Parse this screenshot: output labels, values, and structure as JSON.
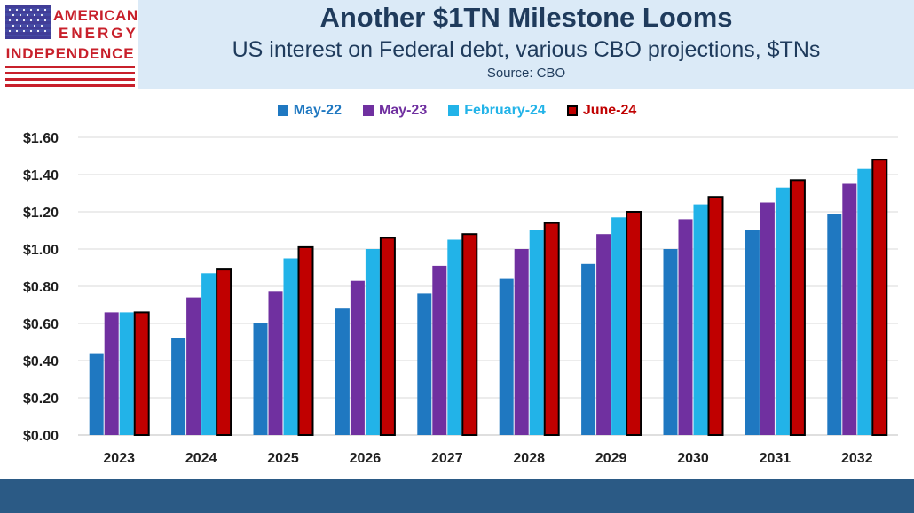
{
  "logo": {
    "line1": "AMERICAN",
    "line2": "ENERGY",
    "line3": "INDEPENDENCE",
    "flag_icon": "us-flag-icon"
  },
  "header": {
    "title": "Another $1TN Milestone Looms",
    "subtitle": "US interest on Federal debt, various CBO projections, $TNs",
    "source": "Source: CBO"
  },
  "colors": {
    "header_band": "#dbeaf7",
    "title_text": "#1f3b5c",
    "footer_band": "#2b5a85",
    "logo_red": "#c8202b"
  },
  "chart_data": {
    "type": "bar",
    "categories": [
      "2023",
      "2024",
      "2025",
      "2026",
      "2027",
      "2028",
      "2029",
      "2030",
      "2031",
      "2032"
    ],
    "series": [
      {
        "name": "May-22",
        "color": "#1f78c1",
        "label_color": "#1f78c1",
        "values": [
          0.44,
          0.52,
          0.6,
          0.68,
          0.76,
          0.84,
          0.92,
          1.0,
          1.1,
          1.19
        ]
      },
      {
        "name": "May-23",
        "color": "#7030a0",
        "label_color": "#7030a0",
        "values": [
          0.66,
          0.74,
          0.77,
          0.83,
          0.91,
          1.0,
          1.08,
          1.16,
          1.25,
          1.35
        ]
      },
      {
        "name": "February-24",
        "color": "#22b3e8",
        "label_color": "#22b3e8",
        "values": [
          0.66,
          0.87,
          0.95,
          1.0,
          1.05,
          1.1,
          1.17,
          1.24,
          1.33,
          1.43
        ]
      },
      {
        "name": "June-24",
        "color": "#c00000",
        "label_color": "#c00000",
        "outlined": true,
        "values": [
          0.66,
          0.89,
          1.01,
          1.06,
          1.08,
          1.14,
          1.2,
          1.28,
          1.37,
          1.48
        ]
      }
    ],
    "y_tick_labels": [
      "$0.00",
      "$0.20",
      "$0.40",
      "$0.60",
      "$0.80",
      "$1.00",
      "$1.20",
      "$1.40",
      "$1.60"
    ],
    "y_ticks": [
      0,
      0.2,
      0.4,
      0.6,
      0.8,
      1.0,
      1.2,
      1.4,
      1.6
    ],
    "ylim": [
      0,
      1.6
    ],
    "grid": true,
    "legend_position": "top-center",
    "xlabel": "",
    "ylabel": ""
  }
}
